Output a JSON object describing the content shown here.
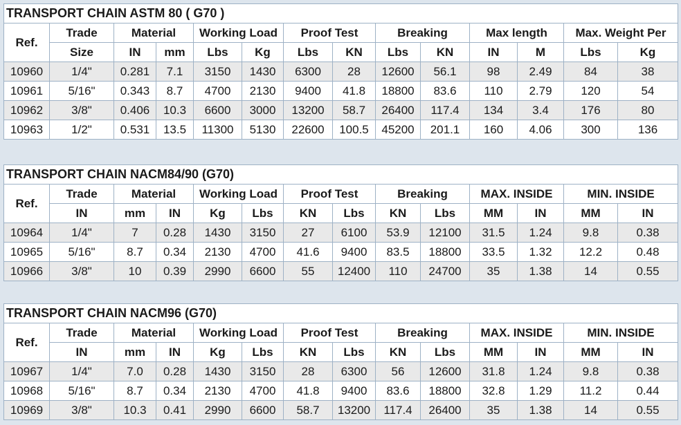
{
  "tables": [
    {
      "title": "TRANSPORT CHAIN ASTM 80 ( G70 )",
      "header_top": [
        "Ref.",
        "Trade",
        "Material",
        "Working Load",
        "Proof Test",
        "Breaking",
        "Max length",
        "Max. Weight  Per"
      ],
      "header_bottom": [
        "Size",
        "IN",
        "mm",
        "Lbs",
        "Kg",
        "Lbs",
        "KN",
        "Lbs",
        "KN",
        "IN",
        "M",
        "Lbs",
        "Kg"
      ],
      "rows": [
        [
          "10960",
          "1/4\"",
          "0.281",
          "7.1",
          "3150",
          "1430",
          "6300",
          "28",
          "12600",
          "56.1",
          "98",
          "2.49",
          "84",
          "38"
        ],
        [
          "10961",
          "5/16\"",
          "0.343",
          "8.7",
          "4700",
          "2130",
          "9400",
          "41.8",
          "18800",
          "83.6",
          "110",
          "2.79",
          "120",
          "54"
        ],
        [
          "10962",
          "3/8\"",
          "0.406",
          "10.3",
          "6600",
          "3000",
          "13200",
          "58.7",
          "26400",
          "117.4",
          "134",
          "3.4",
          "176",
          "80"
        ],
        [
          "10963",
          "1/2\"",
          "0.531",
          "13.5",
          "11300",
          "5130",
          "22600",
          "100.5",
          "45200",
          "201.1",
          "160",
          "4.06",
          "300",
          "136"
        ]
      ]
    },
    {
      "title": "TRANSPORT CHAIN NACM84/90 (G70)",
      "header_top": [
        "Ref.",
        "Trade",
        "Material",
        "Working Load",
        "Proof Test",
        "Breaking",
        "MAX. INSIDE",
        "MIN. INSIDE"
      ],
      "header_bottom": [
        "IN",
        "mm",
        "IN",
        "Kg",
        "Lbs",
        "KN",
        "Lbs",
        "KN",
        "Lbs",
        "MM",
        "IN",
        "MM",
        "IN"
      ],
      "rows": [
        [
          "10964",
          "1/4\"",
          "7",
          "0.28",
          "1430",
          "3150",
          "27",
          "6100",
          "53.9",
          "12100",
          "31.5",
          "1.24",
          "9.8",
          "0.38"
        ],
        [
          "10965",
          "5/16\"",
          "8.7",
          "0.34",
          "2130",
          "4700",
          "41.6",
          "9400",
          "83.5",
          "18800",
          "33.5",
          "1.32",
          "12.2",
          "0.48"
        ],
        [
          "10966",
          "3/8\"",
          "10",
          "0.39",
          "2990",
          "6600",
          "55",
          "12400",
          "110",
          "24700",
          "35",
          "1.38",
          "14",
          "0.55"
        ]
      ]
    },
    {
      "title": "TRANSPORT CHAIN NACM96 (G70)",
      "header_top": [
        "Ref.",
        "Trade",
        "Material",
        "Working Load",
        "Proof Test",
        "Breaking",
        "MAX. INSIDE",
        "MIN. INSIDE"
      ],
      "header_bottom": [
        "IN",
        "mm",
        "IN",
        "Kg",
        "Lbs",
        "KN",
        "Lbs",
        "KN",
        "Lbs",
        "MM",
        "IN",
        "MM",
        "IN"
      ],
      "rows": [
        [
          "10967",
          "1/4\"",
          "7.0",
          "0.28",
          "1430",
          "3150",
          "28",
          "6300",
          "56",
          "12600",
          "31.8",
          "1.24",
          "9.8",
          "0.38"
        ],
        [
          "10968",
          "5/16\"",
          "8.7",
          "0.34",
          "2130",
          "4700",
          "41.8",
          "9400",
          "83.6",
          "18800",
          "32.8",
          "1.29",
          "11.2",
          "0.44"
        ],
        [
          "10969",
          "3/8\"",
          "10.3",
          "0.41",
          "2990",
          "6600",
          "58.7",
          "13200",
          "117.4",
          "26400",
          "35",
          "1.38",
          "14",
          "0.55"
        ]
      ]
    }
  ]
}
